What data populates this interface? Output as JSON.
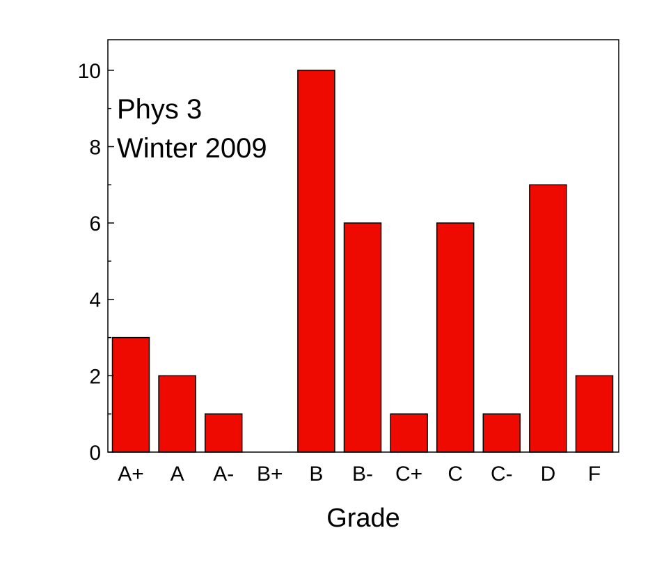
{
  "chart_data": {
    "type": "bar",
    "title": "",
    "annotation": [
      "Phys 3",
      "Winter 2009"
    ],
    "xlabel": "Grade",
    "ylabel": "",
    "categories": [
      "A+",
      "A",
      "A-",
      "B+",
      "B",
      "B-",
      "C+",
      "C",
      "C-",
      "D",
      "F"
    ],
    "values": [
      3,
      2,
      1,
      0,
      10,
      6,
      1,
      6,
      1,
      7,
      2
    ],
    "ylim": [
      0,
      10.8
    ],
    "yticks": [
      0,
      2,
      4,
      6,
      8,
      10
    ],
    "yticks_minor": [
      1,
      3,
      5,
      7,
      9
    ],
    "grid": false,
    "legend": "none",
    "bar_color": "#ee0a00",
    "bar_edge_color": "#000000"
  }
}
